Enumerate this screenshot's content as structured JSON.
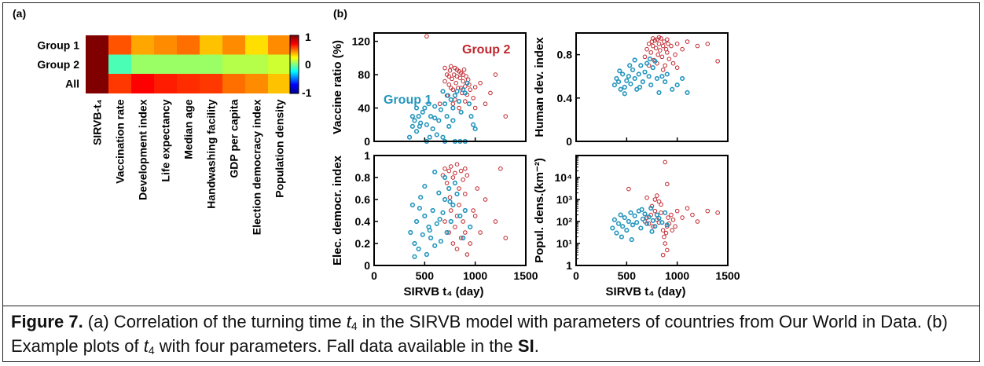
{
  "panel_a_label": "(a)",
  "panel_b_label": "(b)",
  "heatmap": {
    "rows": [
      "Group 1",
      "Group 2",
      "All"
    ],
    "columns": [
      "SIRVB-t₄",
      "Vaccination rate",
      "Development index",
      "Life expectancy",
      "Median age",
      "Handwashing facility",
      "GDP per capita",
      "Election democracy index",
      "Population density"
    ],
    "values": [
      [
        1.0,
        0.55,
        0.4,
        0.45,
        0.5,
        0.35,
        0.45,
        0.3,
        0.45
      ],
      [
        1.0,
        -0.1,
        0.05,
        0.05,
        0.05,
        0.05,
        0.1,
        0.1,
        0.15
      ],
      [
        1.0,
        0.6,
        0.7,
        0.65,
        0.62,
        0.6,
        0.5,
        0.45,
        0.35
      ]
    ],
    "colorbar_ticks": [
      "1",
      "0",
      "-1"
    ],
    "colormap": [
      "#00008f",
      "#0000ff",
      "#00ffff",
      "#ffff00",
      "#ff0000",
      "#800000"
    ]
  },
  "colors": {
    "group1": "#2596be",
    "group2": "#c0262d"
  },
  "chart_data": [
    {
      "type": "scatter",
      "id": "vaccine",
      "xlabel": "",
      "ylabel": "Vaccine ratio (%)",
      "xlim": [
        0,
        1500
      ],
      "ylim": [
        0,
        130
      ],
      "y_scale": "linear",
      "xticks": [
        "0",
        "500",
        "1000",
        "1500"
      ],
      "show_xticks": false,
      "yticks": [
        0,
        40,
        80,
        120
      ],
      "annotations": [
        "Group 1",
        "Group 2"
      ],
      "group1": [
        [
          350,
          5
        ],
        [
          380,
          18
        ],
        [
          400,
          25
        ],
        [
          420,
          12
        ],
        [
          440,
          30
        ],
        [
          460,
          22
        ],
        [
          480,
          35
        ],
        [
          500,
          40
        ],
        [
          520,
          20
        ],
        [
          540,
          45
        ],
        [
          560,
          30
        ],
        [
          580,
          15
        ],
        [
          600,
          42
        ],
        [
          620,
          8
        ],
        [
          640,
          25
        ],
        [
          660,
          38
        ],
        [
          680,
          5
        ],
        [
          700,
          45
        ],
        [
          720,
          30
        ],
        [
          740,
          18
        ],
        [
          760,
          50
        ],
        [
          780,
          40
        ],
        [
          800,
          55
        ],
        [
          820,
          60
        ],
        [
          840,
          48
        ],
        [
          860,
          35
        ],
        [
          880,
          62
        ],
        [
          900,
          58
        ],
        [
          920,
          70
        ],
        [
          940,
          45
        ],
        [
          960,
          30
        ],
        [
          980,
          20
        ],
        [
          1000,
          15
        ],
        [
          420,
          40
        ],
        [
          520,
          0
        ],
        [
          700,
          0
        ],
        [
          800,
          0
        ],
        [
          850,
          0
        ],
        [
          900,
          0
        ],
        [
          550,
          5
        ],
        [
          600,
          28
        ],
        [
          450,
          18
        ],
        [
          380,
          30
        ],
        [
          680,
          60
        ],
        [
          730,
          55
        ],
        [
          780,
          25
        ]
      ],
      "group2": [
        [
          520,
          126
        ],
        [
          680,
          60
        ],
        [
          700,
          72
        ],
        [
          720,
          80
        ],
        [
          740,
          68
        ],
        [
          750,
          85
        ],
        [
          760,
          90
        ],
        [
          770,
          75
        ],
        [
          780,
          62
        ],
        [
          790,
          80
        ],
        [
          800,
          88
        ],
        [
          810,
          70
        ],
        [
          820,
          78
        ],
        [
          830,
          64
        ],
        [
          840,
          84
        ],
        [
          850,
          76
        ],
        [
          860,
          82
        ],
        [
          870,
          58
        ],
        [
          880,
          72
        ],
        [
          890,
          86
        ],
        [
          900,
          66
        ],
        [
          910,
          78
        ],
        [
          920,
          56
        ],
        [
          930,
          74
        ],
        [
          950,
          62
        ],
        [
          980,
          52
        ],
        [
          1000,
          40
        ],
        [
          1050,
          70
        ],
        [
          1100,
          45
        ],
        [
          1200,
          80
        ],
        [
          1300,
          30
        ],
        [
          720,
          55
        ],
        [
          780,
          45
        ],
        [
          840,
          40
        ],
        [
          900,
          48
        ],
        [
          760,
          64
        ],
        [
          820,
          86
        ],
        [
          880,
          80
        ],
        [
          940,
          68
        ],
        [
          700,
          88
        ],
        [
          740,
          78
        ],
        [
          800,
          50
        ],
        [
          860,
          64
        ],
        [
          1000,
          65
        ],
        [
          1150,
          58
        ],
        [
          650,
          45
        ]
      ]
    },
    {
      "type": "scatter",
      "id": "hdi",
      "xlabel": "",
      "ylabel": "Human dev. index",
      "xlim": [
        0,
        1500
      ],
      "ylim": [
        0,
        1.0
      ],
      "y_scale": "linear",
      "xticks": [
        "0",
        "500",
        "1000",
        "1500"
      ],
      "show_xticks": false,
      "yticks": [
        0,
        0.4,
        0.8
      ],
      "group1": [
        [
          380,
          0.52
        ],
        [
          400,
          0.58
        ],
        [
          420,
          0.55
        ],
        [
          440,
          0.48
        ],
        [
          460,
          0.62
        ],
        [
          480,
          0.5
        ],
        [
          500,
          0.56
        ],
        [
          520,
          0.6
        ],
        [
          540,
          0.53
        ],
        [
          560,
          0.66
        ],
        [
          580,
          0.58
        ],
        [
          600,
          0.48
        ],
        [
          620,
          0.62
        ],
        [
          640,
          0.7
        ],
        [
          660,
          0.55
        ],
        [
          680,
          0.64
        ],
        [
          700,
          0.72
        ],
        [
          720,
          0.6
        ],
        [
          740,
          0.52
        ],
        [
          760,
          0.68
        ],
        [
          780,
          0.74
        ],
        [
          800,
          0.58
        ],
        [
          820,
          0.45
        ],
        [
          850,
          0.6
        ],
        [
          880,
          0.55
        ],
        [
          900,
          0.62
        ],
        [
          950,
          0.48
        ],
        [
          1000,
          0.52
        ],
        [
          1050,
          0.58
        ],
        [
          1100,
          0.45
        ],
        [
          430,
          0.65
        ],
        [
          530,
          0.7
        ],
        [
          630,
          0.5
        ],
        [
          730,
          0.76
        ],
        [
          480,
          0.44
        ],
        [
          580,
          0.75
        ]
      ],
      "group2": [
        [
          680,
          0.78
        ],
        [
          700,
          0.85
        ],
        [
          720,
          0.9
        ],
        [
          740,
          0.82
        ],
        [
          750,
          0.92
        ],
        [
          760,
          0.88
        ],
        [
          770,
          0.75
        ],
        [
          780,
          0.93
        ],
        [
          790,
          0.86
        ],
        [
          800,
          0.94
        ],
        [
          810,
          0.8
        ],
        [
          820,
          0.9
        ],
        [
          830,
          0.84
        ],
        [
          840,
          0.95
        ],
        [
          850,
          0.78
        ],
        [
          860,
          0.88
        ],
        [
          870,
          0.92
        ],
        [
          880,
          0.7
        ],
        [
          890,
          0.85
        ],
        [
          900,
          0.82
        ],
        [
          910,
          0.9
        ],
        [
          920,
          0.76
        ],
        [
          940,
          0.88
        ],
        [
          960,
          0.72
        ],
        [
          980,
          0.8
        ],
        [
          1000,
          0.68
        ],
        [
          1050,
          0.85
        ],
        [
          1100,
          0.92
        ],
        [
          1200,
          0.88
        ],
        [
          1300,
          0.9
        ],
        [
          1400,
          0.74
        ],
        [
          720,
          0.7
        ],
        [
          800,
          0.72
        ],
        [
          860,
          0.66
        ],
        [
          760,
          0.95
        ],
        [
          820,
          0.96
        ],
        [
          900,
          0.94
        ],
        [
          1000,
          0.9
        ]
      ]
    },
    {
      "type": "scatter",
      "id": "edi",
      "xlabel": "SIRVB t₄ (day)",
      "ylabel": "Elec. democr. index",
      "xlim": [
        0,
        1500
      ],
      "ylim": [
        0,
        1.0
      ],
      "y_scale": "linear",
      "xticks": [
        "0",
        "500",
        "1000",
        "1500"
      ],
      "show_xticks": true,
      "yticks": [
        0,
        0.2,
        0.4,
        0.6,
        0.8,
        1
      ],
      "group1": [
        [
          360,
          0.3
        ],
        [
          380,
          0.55
        ],
        [
          400,
          0.2
        ],
        [
          420,
          0.4
        ],
        [
          440,
          0.15
        ],
        [
          460,
          0.62
        ],
        [
          480,
          0.28
        ],
        [
          500,
          0.45
        ],
        [
          520,
          0.1
        ],
        [
          540,
          0.35
        ],
        [
          560,
          0.25
        ],
        [
          580,
          0.5
        ],
        [
          600,
          0.18
        ],
        [
          620,
          0.38
        ],
        [
          640,
          0.66
        ],
        [
          660,
          0.22
        ],
        [
          680,
          0.48
        ],
        [
          700,
          0.6
        ],
        [
          720,
          0.3
        ],
        [
          740,
          0.7
        ],
        [
          760,
          0.4
        ],
        [
          780,
          0.55
        ],
        [
          800,
          0.75
        ],
        [
          820,
          0.65
        ],
        [
          850,
          0.45
        ],
        [
          880,
          0.25
        ],
        [
          900,
          0.5
        ],
        [
          950,
          0.35
        ],
        [
          400,
          0.08
        ],
        [
          500,
          0.72
        ],
        [
          600,
          0.85
        ],
        [
          700,
          0.8
        ],
        [
          450,
          0.52
        ],
        [
          550,
          0.32
        ],
        [
          650,
          0.42
        ],
        [
          750,
          0.58
        ]
      ],
      "group2": [
        [
          680,
          0.82
        ],
        [
          700,
          0.88
        ],
        [
          720,
          0.75
        ],
        [
          740,
          0.86
        ],
        [
          760,
          0.9
        ],
        [
          780,
          0.8
        ],
        [
          800,
          0.84
        ],
        [
          820,
          0.92
        ],
        [
          840,
          0.7
        ],
        [
          860,
          0.86
        ],
        [
          880,
          0.78
        ],
        [
          900,
          0.65
        ],
        [
          920,
          0.82
        ],
        [
          700,
          0.4
        ],
        [
          740,
          0.3
        ],
        [
          780,
          0.2
        ],
        [
          800,
          0.35
        ],
        [
          820,
          0.15
        ],
        [
          860,
          0.25
        ],
        [
          880,
          0.4
        ],
        [
          900,
          0.3
        ],
        [
          950,
          0.2
        ],
        [
          1000,
          0.45
        ],
        [
          1050,
          0.3
        ],
        [
          1100,
          0.6
        ],
        [
          1200,
          0.4
        ],
        [
          1300,
          0.25
        ],
        [
          750,
          0.62
        ],
        [
          840,
          0.55
        ],
        [
          920,
          0.1
        ],
        [
          980,
          0.5
        ],
        [
          1020,
          0.7
        ],
        [
          760,
          0.5
        ],
        [
          820,
          0.45
        ],
        [
          900,
          0.88
        ],
        [
          1250,
          0.88
        ]
      ]
    },
    {
      "type": "scatter",
      "id": "popdens",
      "xlabel": "SIRVB t₄ (day)",
      "ylabel": "Popul. dens.(km⁻²)",
      "xlim": [
        0,
        1500
      ],
      "ylim_log10": [
        0,
        5
      ],
      "y_scale": "log",
      "xticks": [
        "0",
        "500",
        "1000",
        "1500"
      ],
      "show_xticks": true,
      "yticks": [
        "1",
        "10¹",
        "10²",
        "10³",
        "10⁴"
      ],
      "group1": [
        [
          360,
          50
        ],
        [
          380,
          120
        ],
        [
          400,
          30
        ],
        [
          420,
          80
        ],
        [
          440,
          200
        ],
        [
          460,
          60
        ],
        [
          480,
          150
        ],
        [
          500,
          40
        ],
        [
          520,
          100
        ],
        [
          540,
          250
        ],
        [
          560,
          70
        ],
        [
          580,
          180
        ],
        [
          600,
          90
        ],
        [
          620,
          300
        ],
        [
          640,
          50
        ],
        [
          660,
          130
        ],
        [
          680,
          220
        ],
        [
          700,
          80
        ],
        [
          720,
          160
        ],
        [
          740,
          400
        ],
        [
          760,
          110
        ],
        [
          780,
          60
        ],
        [
          800,
          200
        ],
        [
          820,
          140
        ],
        [
          850,
          90
        ],
        [
          880,
          250
        ],
        [
          900,
          70
        ],
        [
          450,
          20
        ],
        [
          550,
          15
        ],
        [
          650,
          350
        ],
        [
          750,
          35
        ]
      ],
      "group2": [
        [
          520,
          3000
        ],
        [
          680,
          100
        ],
        [
          700,
          150
        ],
        [
          720,
          80
        ],
        [
          740,
          200
        ],
        [
          760,
          60
        ],
        [
          780,
          300
        ],
        [
          800,
          120
        ],
        [
          820,
          90
        ],
        [
          840,
          250
        ],
        [
          860,
          40
        ],
        [
          870,
          20
        ],
        [
          880,
          10
        ],
        [
          890,
          30
        ],
        [
          900,
          60
        ],
        [
          910,
          150
        ],
        [
          920,
          80
        ],
        [
          940,
          200
        ],
        [
          960,
          120
        ],
        [
          980,
          60
        ],
        [
          1000,
          300
        ],
        [
          1050,
          150
        ],
        [
          1100,
          400
        ],
        [
          1150,
          200
        ],
        [
          1200,
          100
        ],
        [
          1300,
          300
        ],
        [
          1400,
          250
        ],
        [
          700,
          1200
        ],
        [
          800,
          1500
        ],
        [
          880,
          50000
        ],
        [
          900,
          5000
        ],
        [
          750,
          500
        ],
        [
          820,
          800
        ],
        [
          860,
          3
        ],
        [
          900,
          5
        ],
        [
          950,
          40
        ],
        [
          780,
          1000
        ],
        [
          840,
          600
        ]
      ]
    }
  ],
  "caption": {
    "label": "Figure 7.",
    "part1": " (a) Correlation of the turning time ",
    "var": "t",
    "sub": "4",
    "part2": " in the SIRVB model with parameters of countries from Our World in Data. (b) Example plots of ",
    "var2": "t",
    "sub2": "4",
    "part3": " with four parameters. Fall data available in the ",
    "si": "SI",
    "end": "."
  }
}
